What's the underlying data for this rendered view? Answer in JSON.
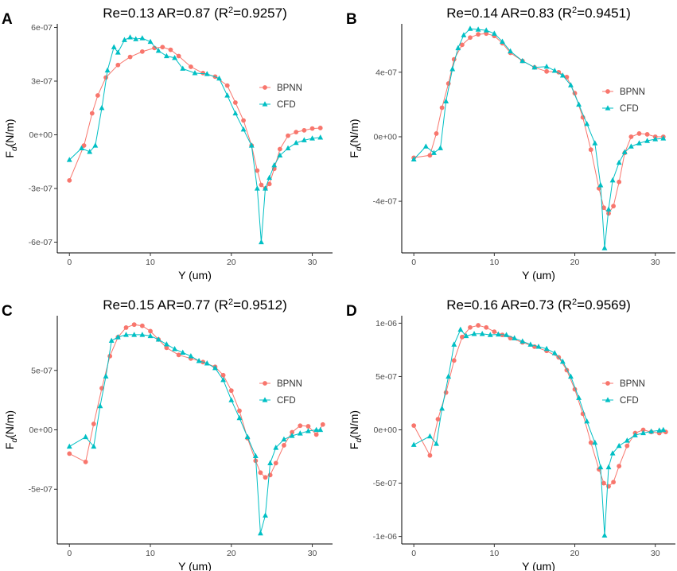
{
  "colors": {
    "BPNN": "#F8766D",
    "CFD": "#00BFC4",
    "axis": "#000000",
    "tick_text": "#4d4d4d"
  },
  "chart_data": [
    {
      "panel": "A",
      "type": "line",
      "title_main": "Re=0.13 AR=0.87 (R",
      "title_sup": "2",
      "title_tail": "=0.9257)",
      "xlabel": "Y (um)",
      "ylabel_main": "F",
      "ylabel_sub": "d",
      "ylabel_tail": "(N/m)",
      "xlim": [
        -1.5,
        32.5
      ],
      "ylim": [
        -6.6e-07,
        6.2e-07
      ],
      "xticks": [
        0,
        10,
        20,
        30
      ],
      "xtick_labels": [
        "0",
        "10",
        "20",
        "30"
      ],
      "yticks": [
        -6e-07,
        -3e-07,
        0,
        3e-07,
        6e-07
      ],
      "ytick_labels": [
        "-6e-07",
        "-3e-07",
        "0e+00",
        "3e-07",
        "6e-07"
      ],
      "legend": [
        "BPNN",
        "CFD"
      ],
      "legend_position": "right",
      "series": [
        {
          "name": "BPNN",
          "marker": "circle",
          "x": [
            0,
            1.8,
            2.8,
            3.5,
            4.5,
            6,
            7.5,
            9,
            10.5,
            11.5,
            12.5,
            13.5,
            15,
            16.5,
            18,
            19.5,
            20.5,
            21.5,
            22.5,
            23.2,
            23.7,
            24.2,
            24.7,
            25.3,
            26,
            27,
            28,
            29,
            30,
            31
          ],
          "y": [
            -2.55e-07,
            -6e-08,
            1.2e-07,
            2.2e-07,
            3.2e-07,
            3.9e-07,
            4.35e-07,
            4.65e-07,
            4.85e-07,
            4.9e-07,
            4.75e-07,
            4.4e-07,
            3.8e-07,
            3.45e-07,
            3.25e-07,
            2.75e-07,
            1.8e-07,
            8e-08,
            -6e-08,
            -2e-07,
            -2.8e-07,
            -3e-07,
            -2.75e-07,
            -1.9e-07,
            -8e-08,
            -5e-09,
            1.5e-08,
            2.5e-08,
            3.5e-08,
            3.8e-08
          ]
        },
        {
          "name": "CFD",
          "marker": "triangle",
          "x": [
            0,
            1.5,
            2.5,
            3.2,
            4,
            4.7,
            5.5,
            6,
            6.8,
            7.5,
            8.2,
            9,
            10,
            11,
            12,
            13,
            14,
            15.5,
            17,
            18.5,
            19.5,
            20.5,
            21.5,
            22.5,
            23.2,
            23.7,
            24.2,
            24.7,
            25.3,
            26,
            27,
            28,
            29,
            30,
            31
          ],
          "y": [
            -1.4e-07,
            -7.5e-08,
            -9.5e-08,
            -6e-08,
            1.5e-07,
            3.6e-07,
            4.9e-07,
            4.6e-07,
            5.3e-07,
            5.45e-07,
            5.35e-07,
            5.4e-07,
            5.2e-07,
            4.7e-07,
            4.4e-07,
            4.3e-07,
            3.7e-07,
            3.45e-07,
            3.4e-07,
            3.15e-07,
            2.2e-07,
            1.2e-07,
            3e-08,
            -6e-08,
            -3e-07,
            -6e-07,
            -3e-07,
            -2.4e-07,
            -1.7e-07,
            -1.15e-07,
            -7.5e-08,
            -4.5e-08,
            -3e-08,
            -2e-08,
            -1.5e-08
          ]
        }
      ]
    },
    {
      "panel": "B",
      "type": "line",
      "title_main": "Re=0.14 AR=0.83 (R",
      "title_sup": "2",
      "title_tail": "=0.9451)",
      "xlabel": "Y (um)",
      "ylabel_main": "F",
      "ylabel_sub": "d",
      "ylabel_tail": "(N/m)",
      "xlim": [
        -1.5,
        32.5
      ],
      "ylim": [
        -7.2e-07,
        7e-07
      ],
      "xticks": [
        0,
        10,
        20,
        30
      ],
      "xtick_labels": [
        "0",
        "10",
        "20",
        "30"
      ],
      "yticks": [
        -4e-07,
        0,
        4e-07
      ],
      "ytick_labels": [
        "-4e-07",
        "0e+00",
        "4e-07"
      ],
      "legend": [
        "BPNN",
        "CFD"
      ],
      "legend_position": "right",
      "series": [
        {
          "name": "BPNN",
          "marker": "circle",
          "x": [
            0,
            2,
            2.8,
            3.5,
            4.3,
            5,
            6,
            7,
            8,
            9,
            10,
            11,
            12,
            13.5,
            15,
            16.5,
            18,
            19,
            20,
            21,
            22,
            23,
            23.6,
            24.2,
            24.8,
            25.5,
            26.2,
            27,
            28,
            29,
            30,
            31
          ],
          "y": [
            -1.3e-07,
            -1.15e-07,
            2e-08,
            1.8e-07,
            3.3e-07,
            4.8e-07,
            5.7e-07,
            6.15e-07,
            6.35e-07,
            6.4e-07,
            6.25e-07,
            5.8e-07,
            5.2e-07,
            4.7e-07,
            4.3e-07,
            4.05e-07,
            4e-07,
            3.7e-07,
            2.7e-07,
            1.2e-07,
            -8e-08,
            -3.2e-07,
            -4.4e-07,
            -4.75e-07,
            -4.3e-07,
            -2.8e-07,
            -1e-07,
            0.0,
            2e-08,
            1.5e-08,
            0.0,
            0.0
          ]
        },
        {
          "name": "CFD",
          "marker": "triangle",
          "x": [
            0,
            1.5,
            2.5,
            3.3,
            4,
            4.8,
            5.5,
            6.2,
            7,
            8,
            9,
            10,
            11,
            12,
            13.5,
            15,
            16.5,
            17.5,
            18.5,
            19.5,
            20.5,
            21.5,
            22.5,
            23.2,
            23.7,
            24.2,
            24.7,
            25.5,
            26.2,
            27,
            28,
            29,
            30,
            31
          ],
          "y": [
            -1.4e-07,
            -6e-08,
            -1e-07,
            -7e-08,
            2.2e-07,
            4.2e-07,
            5.5e-07,
            6.3e-07,
            6.7e-07,
            6.65e-07,
            6.6e-07,
            6.4e-07,
            5.9e-07,
            5.3e-07,
            4.7e-07,
            4.3e-07,
            4.35e-07,
            4.1e-07,
            3.8e-07,
            3.2e-07,
            2e-07,
            8e-08,
            -4e-08,
            -3e-07,
            -6.9e-07,
            -4.5e-07,
            -2.7e-07,
            -1.6e-07,
            -9.5e-08,
            -6e-08,
            -4e-08,
            -2.5e-08,
            -1.5e-08,
            -1e-08
          ]
        }
      ]
    },
    {
      "panel": "C",
      "type": "line",
      "title_main": "Re=0.15 AR=0.77 (R",
      "title_sup": "2",
      "title_tail": "=0.9512)",
      "xlabel": "Y (um)",
      "ylabel_main": "F",
      "ylabel_sub": "d",
      "ylabel_tail": "(N/m)",
      "xlim": [
        -1.5,
        32.5
      ],
      "ylim": [
        -9.6e-07,
        9.6e-07
      ],
      "xticks": [
        0,
        10,
        20,
        30
      ],
      "xtick_labels": [
        "0",
        "10",
        "20",
        "30"
      ],
      "yticks": [
        -5e-07,
        0,
        5e-07
      ],
      "ytick_labels": [
        "-5e-07",
        "0e+00",
        "5e-07"
      ],
      "legend": [
        "BPNN",
        "CFD"
      ],
      "legend_position": "right",
      "series": [
        {
          "name": "BPNN",
          "marker": "circle",
          "x": [
            0,
            2,
            3,
            4,
            5,
            6,
            7,
            8,
            9,
            10,
            11,
            12,
            13.5,
            15,
            16.5,
            18,
            19,
            20,
            21,
            22,
            23,
            23.6,
            24.2,
            24.8,
            25.5,
            26.5,
            27.5,
            28.5,
            29.5,
            30.5,
            31.3
          ],
          "y": [
            -2e-07,
            -2.7e-07,
            5e-08,
            3.5e-07,
            6.2e-07,
            7.8e-07,
            8.6e-07,
            8.85e-07,
            8.75e-07,
            8.3e-07,
            7.6e-07,
            6.9e-07,
            6.3e-07,
            6e-07,
            5.7e-07,
            5.3e-07,
            4.6e-07,
            3.3e-07,
            1.6e-07,
            -7e-08,
            -2.6e-07,
            -3.6e-07,
            -4e-07,
            -3.8e-07,
            -2.8e-07,
            -1.3e-07,
            -2e-08,
            3.5e-08,
            3e-08,
            -4e-08,
            4.5e-08
          ]
        },
        {
          "name": "CFD",
          "marker": "triangle",
          "x": [
            0,
            2,
            3,
            3.8,
            4.5,
            5.2,
            6,
            7,
            8,
            9,
            10,
            11,
            12,
            13,
            14,
            15,
            16,
            17,
            18,
            19,
            20,
            21,
            22,
            23,
            23.6,
            24.2,
            24.8,
            25.5,
            26.5,
            27.5,
            28.5,
            29.5,
            30.5,
            31
          ],
          "y": [
            -1.4e-07,
            -6e-08,
            -1.4e-07,
            2e-07,
            4.5e-07,
            7.5e-07,
            7.8e-07,
            8e-07,
            8e-07,
            8e-07,
            7.9e-07,
            7.6e-07,
            7.2e-07,
            6.8e-07,
            6.5e-07,
            6.2e-07,
            5.8e-07,
            5.6e-07,
            5.2e-07,
            4.2e-07,
            2.5e-07,
            1e-07,
            -6e-08,
            -2.2e-07,
            -8.7e-07,
            -7.2e-07,
            -2.8e-07,
            -1.5e-07,
            -8e-08,
            -5e-08,
            -3e-08,
            -1e-08,
            0.0,
            0.0
          ]
        }
      ]
    },
    {
      "panel": "D",
      "type": "line",
      "title_main": "Re=0.16 AR=0.73 (R",
      "title_sup": "2",
      "title_tail": "=0.9569)",
      "xlabel": "Y (um)",
      "ylabel_main": "F",
      "ylabel_sub": "d",
      "ylabel_tail": "(N/m)",
      "xlim": [
        -1.5,
        32.5
      ],
      "ylim": [
        -1.07e-06,
        1.07e-06
      ],
      "xticks": [
        0,
        10,
        20,
        30
      ],
      "xtick_labels": [
        "0",
        "10",
        "20",
        "30"
      ],
      "yticks": [
        -1e-06,
        -5e-07,
        0,
        5e-07,
        1e-06
      ],
      "ytick_labels": [
        "-1e-06",
        "-5e-07",
        "0e+00",
        "5e-07",
        "1e-06"
      ],
      "legend": [
        "BPNN",
        "CFD"
      ],
      "legend_position": "right",
      "series": [
        {
          "name": "BPNN",
          "marker": "circle",
          "x": [
            0,
            2,
            3,
            4,
            5,
            6,
            7,
            8,
            9,
            10,
            11,
            12,
            13.5,
            15,
            16.5,
            18,
            19,
            20,
            21,
            22,
            23,
            23.6,
            24.2,
            24.8,
            25.5,
            26.5,
            27.5,
            28.5,
            29.5,
            30.5,
            31.3
          ],
          "y": [
            4e-08,
            -2.4e-07,
            1e-07,
            3.5e-07,
            6.5e-07,
            8.7e-07,
            9.6e-07,
            9.8e-07,
            9.6e-07,
            9.2e-07,
            8.9e-07,
            8.6e-07,
            8.2e-07,
            7.8e-07,
            7.4e-07,
            6.8e-07,
            5.6e-07,
            3.8e-07,
            1.5e-07,
            -1.2e-07,
            -3.7e-07,
            -5e-07,
            -5.3e-07,
            -4.9e-07,
            -3.4e-07,
            -1.5e-07,
            -3e-08,
            0.0,
            -2e-08,
            -3e-08,
            -2e-08
          ]
        },
        {
          "name": "CFD",
          "marker": "triangle",
          "x": [
            0,
            2,
            2.8,
            3.5,
            4.3,
            5,
            5.8,
            6.5,
            7.5,
            8.5,
            9.5,
            10.5,
            11.5,
            12.5,
            13.5,
            14.5,
            15.5,
            16.5,
            17.5,
            18.5,
            19.5,
            20.5,
            21.5,
            22.5,
            23.2,
            23.7,
            24.2,
            24.7,
            25.5,
            26.5,
            27.5,
            28.5,
            29.5,
            30.5,
            31
          ],
          "y": [
            -1.4e-07,
            -6e-08,
            -1.3e-07,
            2e-07,
            5e-07,
            8e-07,
            9.4e-07,
            8.8e-07,
            9e-07,
            9e-07,
            8.9e-07,
            8.95e-07,
            8.9e-07,
            8.6e-07,
            8.3e-07,
            8e-07,
            7.8e-07,
            7.6e-07,
            7.2e-07,
            6.4e-07,
            5e-07,
            3e-07,
            8e-08,
            -1.2e-07,
            -3.5e-07,
            -9.9e-07,
            -3.5e-07,
            -2.2e-07,
            -1.5e-07,
            -1e-07,
            -5e-08,
            -3e-08,
            -1.5e-08,
            -5e-09,
            0.0
          ]
        }
      ]
    }
  ]
}
